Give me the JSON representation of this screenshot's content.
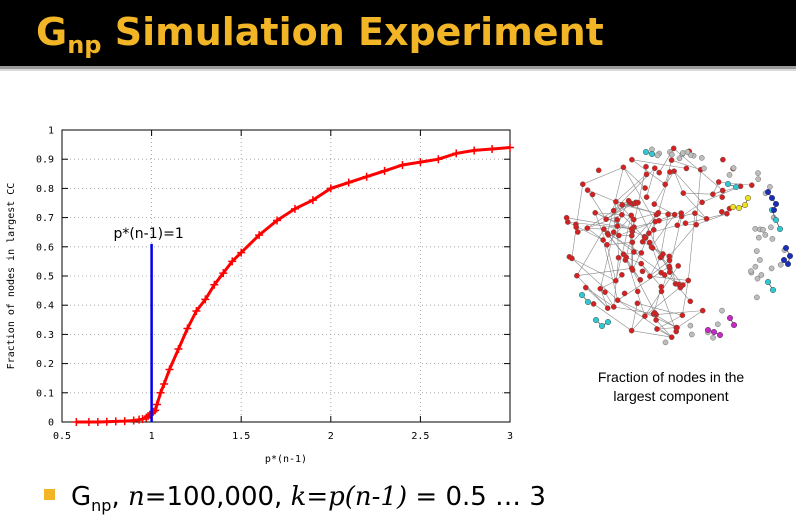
{
  "slide": {
    "title_main": "G",
    "title_sub": "np",
    "title_rest": " Simulation Experiment",
    "caption_line1": "Fraction of nodes in the",
    "caption_line2": "largest component",
    "bullet": {
      "g": "G",
      "g_sub": "np",
      "comma1": ", ",
      "n": "n",
      "n_value": "=100,000, ",
      "k_expr": "k=p(n-1)",
      "range": " = 0.5 … 3"
    }
  },
  "colors": {
    "title": "#f2b526",
    "curve": "#ff0000",
    "marker_line": "#0000ee",
    "node_red": "#d42020",
    "node_grey": "#bdbdbd",
    "node_cyan": "#32c8d2",
    "node_blue": "#1a2fb8",
    "node_yellow": "#f0e020",
    "node_magenta": "#c828c8"
  },
  "chart_data": {
    "type": "scatter",
    "xlabel": "p*(n-1)",
    "ylabel": "Fraction of nodes in largest CC",
    "xlim": [
      0.5,
      3
    ],
    "ylim": [
      0,
      1
    ],
    "xticks": [
      "0.5",
      "1",
      "1.5",
      "2",
      "2.5",
      "3"
    ],
    "yticks": [
      "0",
      "0.1",
      "0.2",
      "0.3",
      "0.4",
      "0.5",
      "0.6",
      "0.7",
      "0.8",
      "0.9",
      "1"
    ],
    "grid": true,
    "marker": "+",
    "series": [
      {
        "x": [
          0.58,
          0.65,
          0.7,
          0.75,
          0.8,
          0.85,
          0.9,
          0.93,
          0.95,
          0.97,
          0.98,
          0.99,
          1.0,
          1.01,
          1.02,
          1.03,
          1.05,
          1.07,
          1.1,
          1.15,
          1.2,
          1.25,
          1.3,
          1.35,
          1.4,
          1.45,
          1.5,
          1.6,
          1.7,
          1.8,
          1.9,
          2.0,
          2.1,
          2.2,
          2.3,
          2.4,
          2.5,
          2.6,
          2.7,
          2.8,
          2.9,
          3.0
        ],
        "y": [
          0.0,
          0.0,
          0.0,
          0.001,
          0.002,
          0.003,
          0.005,
          0.008,
          0.01,
          0.015,
          0.02,
          0.025,
          0.03,
          0.035,
          0.04,
          0.06,
          0.1,
          0.13,
          0.18,
          0.25,
          0.32,
          0.38,
          0.42,
          0.47,
          0.51,
          0.55,
          0.58,
          0.64,
          0.69,
          0.73,
          0.76,
          0.8,
          0.82,
          0.84,
          0.86,
          0.88,
          0.89,
          0.9,
          0.92,
          0.93,
          0.935,
          0.94
        ]
      }
    ],
    "vertical_marker": {
      "x": 1.0,
      "y_top": 0.61,
      "label": "p*(n-1)=1"
    }
  }
}
